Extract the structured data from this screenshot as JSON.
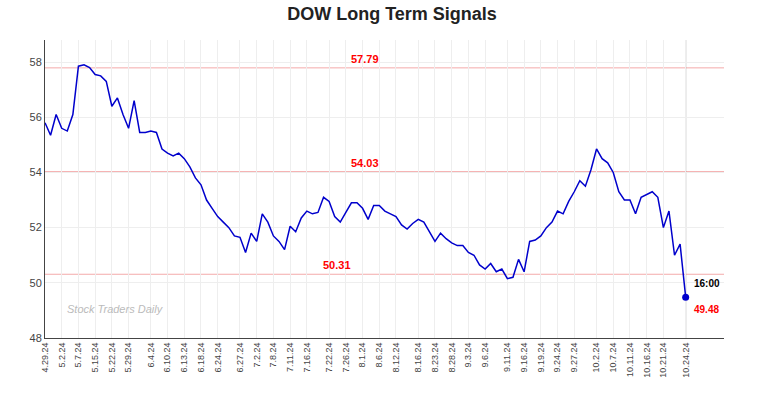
{
  "chart_data": {
    "type": "line",
    "title": "DOW Long Term Signals",
    "color": "#0000cc",
    "categories": [
      "4.29.24",
      null,
      null,
      "5.2.24",
      null,
      null,
      "5.7.24",
      null,
      null,
      "5.15.24",
      null,
      null,
      "5.22.24",
      null,
      null,
      "5.29.24",
      null,
      null,
      null,
      "6.4.24",
      null,
      null,
      "6.10.24",
      null,
      null,
      "6.13.24",
      null,
      null,
      "6.18.24",
      null,
      null,
      "6.24.24",
      null,
      null,
      null,
      "6.27.24",
      null,
      null,
      "7.2.24",
      null,
      null,
      "7.8.24",
      null,
      null,
      "7.11.24",
      null,
      null,
      "7.16.24",
      null,
      null,
      null,
      "7.22.24",
      null,
      null,
      "7.26.24",
      null,
      null,
      "8.1.24",
      null,
      null,
      "8.6.24",
      null,
      null,
      "8.12.24",
      null,
      null,
      null,
      "8.16.24",
      null,
      null,
      "8.23.24",
      null,
      null,
      "8.28.24",
      null,
      null,
      "9.3.24",
      null,
      null,
      "9.6.24",
      null,
      null,
      null,
      "9.11.24",
      null,
      null,
      "9.16.24",
      null,
      null,
      "9.19.24",
      null,
      null,
      "9.24.24",
      null,
      null,
      "9.27.24",
      null,
      null,
      null,
      "10.2.24",
      null,
      null,
      "10.7.24",
      null,
      null,
      "10.11.24",
      null,
      null,
      "10.16.24",
      null,
      null,
      "10.21.24",
      null,
      null,
      null,
      "10.24.24"
    ],
    "values": [
      55.8,
      55.35,
      56.1,
      55.6,
      55.5,
      56.1,
      57.85,
      57.9,
      57.8,
      57.55,
      57.5,
      57.3,
      56.4,
      56.7,
      56.1,
      55.6,
      56.6,
      55.45,
      55.45,
      55.5,
      55.45,
      54.85,
      54.7,
      54.6,
      54.7,
      54.5,
      54.2,
      53.8,
      53.55,
      53.0,
      52.7,
      52.4,
      52.2,
      52.0,
      51.7,
      51.65,
      51.1,
      51.8,
      51.5,
      52.5,
      52.2,
      51.7,
      51.5,
      51.2,
      52.05,
      51.85,
      52.35,
      52.6,
      52.5,
      52.55,
      53.1,
      52.95,
      52.4,
      52.2,
      52.55,
      52.9,
      52.9,
      52.7,
      52.3,
      52.8,
      52.8,
      52.6,
      52.5,
      52.4,
      52.1,
      51.95,
      52.15,
      52.3,
      52.2,
      51.85,
      51.5,
      51.8,
      51.6,
      51.45,
      51.35,
      51.35,
      51.1,
      51.0,
      50.65,
      50.5,
      50.7,
      50.4,
      50.5,
      50.15,
      50.2,
      50.85,
      50.4,
      51.5,
      51.55,
      51.7,
      52.0,
      52.2,
      52.6,
      52.5,
      52.95,
      53.3,
      53.7,
      53.5,
      54.1,
      54.85,
      54.5,
      54.35,
      54.0,
      53.3,
      53.0,
      53.0,
      52.5,
      53.1,
      53.2,
      53.3,
      53.1,
      52.0,
      52.6,
      51.0,
      51.4,
      49.48
    ],
    "reference_lines": [
      {
        "value": 57.79,
        "label": "57.79",
        "color": "#f4aaaa"
      },
      {
        "value": 54.03,
        "label": "54.03",
        "color": "#f4aaaa"
      },
      {
        "value": 50.31,
        "label": "50.31",
        "color": "#f4aaaa"
      }
    ],
    "end_point": {
      "value": 49.48,
      "label": "16:00"
    },
    "watermark": "Stock Traders Daily",
    "ylim": [
      48.0,
      58.8
    ],
    "yticks": [
      48,
      50,
      52,
      54,
      56,
      58
    ],
    "grid": true
  }
}
